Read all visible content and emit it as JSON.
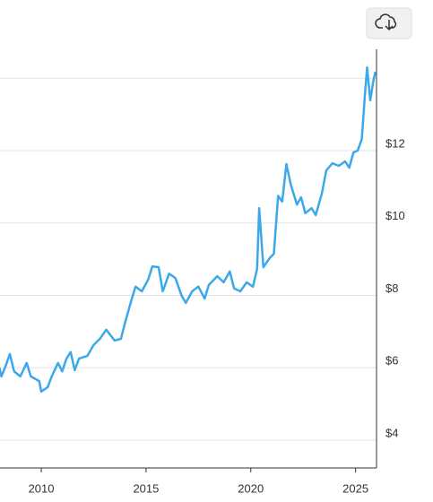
{
  "chart_data": {
    "type": "line",
    "x": [
      2008.0,
      2008.1,
      2008.3,
      2008.5,
      2008.7,
      2009.0,
      2009.3,
      2009.5,
      2009.9,
      2010.0,
      2010.3,
      2010.5,
      2010.8,
      2011.0,
      2011.2,
      2011.4,
      2011.6,
      2011.8,
      2012.2,
      2012.5,
      2012.8,
      2013.1,
      2013.5,
      2013.8,
      2014.0,
      2014.3,
      2014.5,
      2014.8,
      2015.1,
      2015.3,
      2015.6,
      2015.8,
      2016.1,
      2016.4,
      2016.7,
      2016.9,
      2017.2,
      2017.5,
      2017.8,
      2018.0,
      2018.4,
      2018.7,
      2019.0,
      2019.2,
      2019.5,
      2019.8,
      2020.1,
      2020.3,
      2020.4,
      2020.6,
      2020.9,
      2021.1,
      2021.3,
      2021.5,
      2021.7,
      2021.9,
      2022.2,
      2022.4,
      2022.6,
      2022.9,
      2023.1,
      2023.4,
      2023.6,
      2023.9,
      2024.2,
      2024.5,
      2024.7,
      2024.9,
      2025.1,
      2025.3,
      2025.45,
      2025.55,
      2025.7,
      2025.85,
      2025.95
    ],
    "series": [
      {
        "color": "#3aa8ea",
        "values": [
          6.0,
          5.76,
          6.05,
          6.38,
          5.9,
          5.76,
          6.13,
          5.76,
          5.63,
          5.34,
          5.46,
          5.76,
          6.13,
          5.9,
          6.25,
          6.43,
          5.93,
          6.25,
          6.33,
          6.63,
          6.8,
          7.05,
          6.75,
          6.8,
          7.24,
          7.86,
          8.24,
          8.11,
          8.43,
          8.8,
          8.78,
          8.11,
          8.6,
          8.48,
          7.99,
          7.79,
          8.11,
          8.24,
          7.91,
          8.29,
          8.53,
          8.36,
          8.66,
          8.19,
          8.11,
          8.36,
          8.24,
          8.73,
          10.41,
          8.78,
          9.03,
          9.15,
          10.75,
          10.59,
          11.63,
          11.08,
          10.51,
          10.71,
          10.27,
          10.41,
          10.22,
          10.83,
          11.45,
          11.65,
          11.58,
          11.7,
          11.53,
          11.95,
          12.0,
          12.32,
          13.56,
          14.3,
          13.39,
          13.93,
          14.18
        ]
      }
    ],
    "xlim": [
      2008.03,
      2026.0
    ],
    "xticks": [
      2010,
      2015,
      2020,
      2025
    ],
    "ylim": [
      3.23,
      14.8
    ],
    "yticks": [
      {
        "value": 4,
        "label": "$4"
      },
      {
        "value": 6,
        "label": "$6"
      },
      {
        "value": 8,
        "label": "$8"
      },
      {
        "value": 10,
        "label": "$10"
      },
      {
        "value": 12,
        "label": "$12"
      }
    ],
    "ygrid": [
      4,
      6,
      8,
      10,
      12,
      14
    ]
  }
}
